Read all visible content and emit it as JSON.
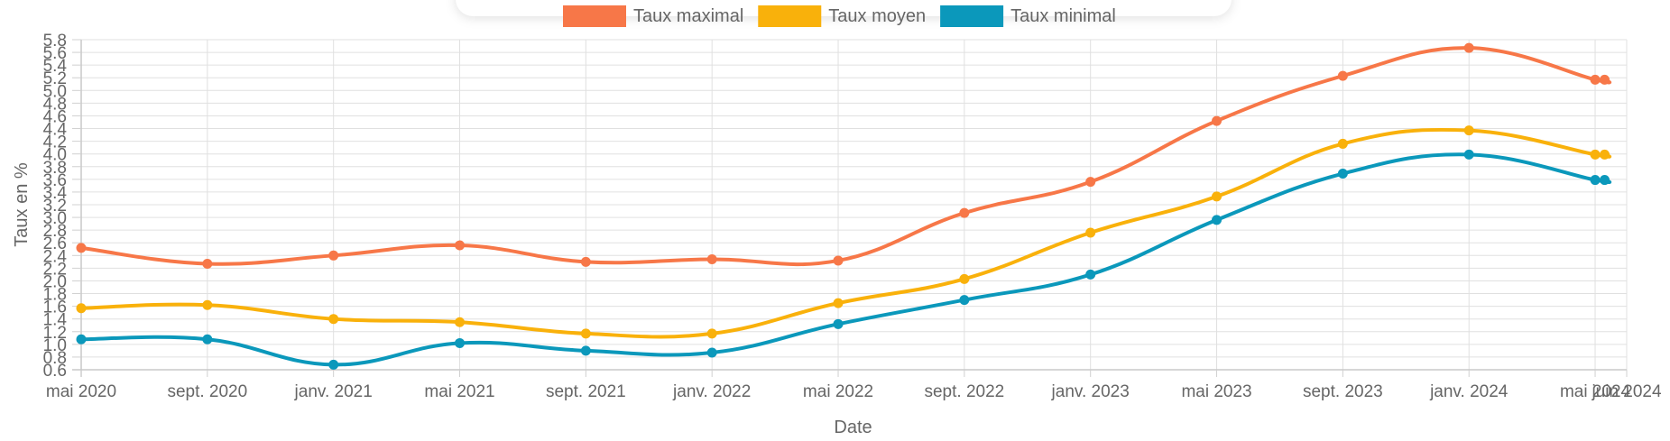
{
  "chart_data": {
    "type": "line",
    "xlabel": "Date",
    "ylabel": "Taux en %",
    "x_tick_labels": [
      "mai 2020",
      "sept. 2020",
      "janv. 2021",
      "mai 2021",
      "sept. 2021",
      "janv. 2022",
      "mai 2022",
      "sept. 2022",
      "janv. 2023",
      "mai 2023",
      "sept. 2023",
      "janv. 2024",
      "mai 2024",
      "juin 2024"
    ],
    "x_tick_positions": [
      0,
      4,
      8,
      12,
      16,
      20,
      24,
      28,
      32,
      36,
      40,
      44,
      48,
      49
    ],
    "xlim": [
      0,
      49
    ],
    "ylim": [
      0.6,
      5.8
    ],
    "y_ticks": [
      0.6,
      0.8,
      1.0,
      1.2,
      1.4,
      1.6,
      1.8,
      2.0,
      2.2,
      2.4,
      2.6,
      2.8,
      3.0,
      3.2,
      3.4,
      3.6,
      3.8,
      4.0,
      4.2,
      4.4,
      4.6,
      4.8,
      5.0,
      5.2,
      5.4,
      5.6,
      5.8
    ],
    "grid": true,
    "legend_position": "top",
    "x": [
      0,
      4,
      8,
      12,
      16,
      20,
      24,
      28,
      32,
      36,
      40,
      44,
      48,
      48.3
    ],
    "series": [
      {
        "name": "Taux maximal",
        "color": "#f77748",
        "values": [
          2.52,
          2.27,
          2.4,
          2.56,
          2.3,
          2.34,
          2.32,
          3.07,
          3.56,
          4.52,
          5.23,
          5.67,
          5.17,
          5.17
        ]
      },
      {
        "name": "Taux moyen",
        "color": "#f9b10b",
        "values": [
          1.57,
          1.62,
          1.4,
          1.35,
          1.17,
          1.17,
          1.65,
          2.03,
          2.76,
          3.33,
          4.16,
          4.37,
          3.99,
          3.99
        ]
      },
      {
        "name": "Taux minimal",
        "color": "#0b98bb",
        "values": [
          1.08,
          1.08,
          0.68,
          1.02,
          0.9,
          0.87,
          1.32,
          1.7,
          2.1,
          2.96,
          3.69,
          3.99,
          3.59,
          3.59
        ]
      }
    ]
  }
}
